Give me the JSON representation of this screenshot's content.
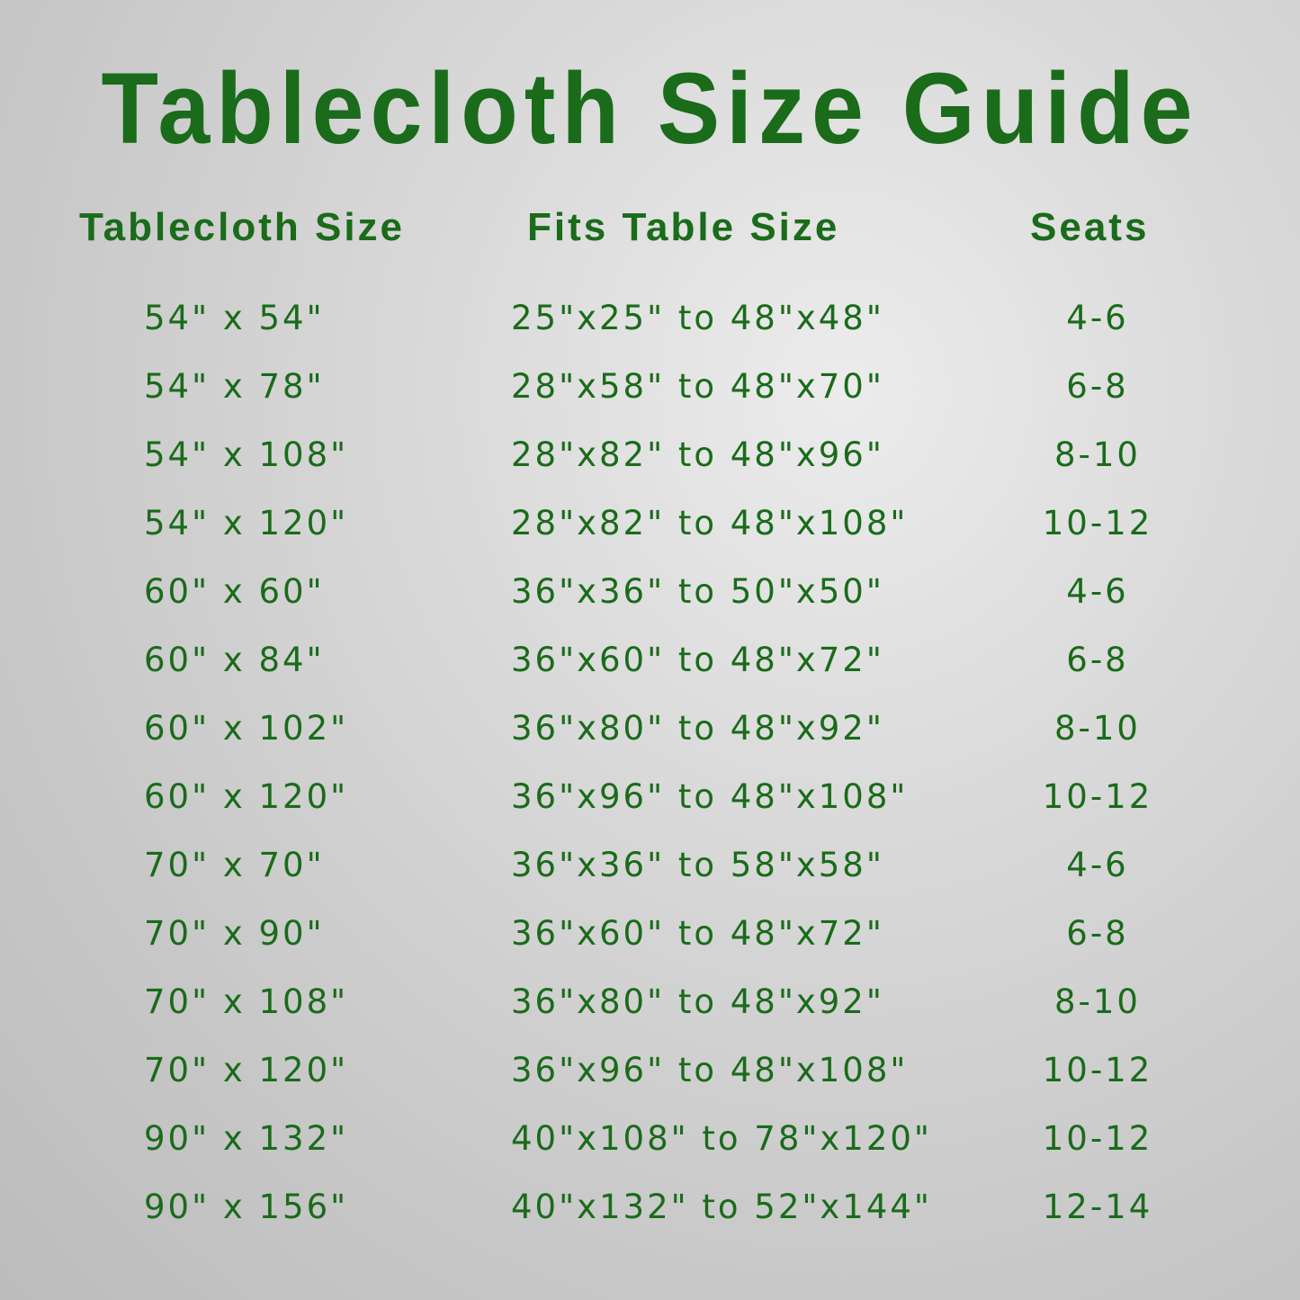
{
  "title": "Tablecloth Size Guide",
  "headers": {
    "size": "Tablecloth Size",
    "fits": "Fits Table Size",
    "seats": "Seats"
  },
  "rows": [
    {
      "size": "54\" x 54\"",
      "fits": "25\"x25\" to 48\"x48\"",
      "seats": "4-6"
    },
    {
      "size": "54\" x 78\"",
      "fits": "28\"x58\" to 48\"x70\"",
      "seats": "6-8"
    },
    {
      "size": "54\" x 108\"",
      "fits": "28\"x82\" to 48\"x96\"",
      "seats": "8-10"
    },
    {
      "size": "54\" x 120\"",
      "fits": "28\"x82\" to 48\"x108\"",
      "seats": "10-12"
    },
    {
      "size": "60\" x 60\"",
      "fits": "36\"x36\" to 50\"x50\"",
      "seats": "4-6"
    },
    {
      "size": "60\" x 84\"",
      "fits": "36\"x60\" to 48\"x72\"",
      "seats": "6-8"
    },
    {
      "size": "60\" x 102\"",
      "fits": "36\"x80\" to 48\"x92\"",
      "seats": "8-10"
    },
    {
      "size": "60\" x 120\"",
      "fits": "36\"x96\" to 48\"x108\"",
      "seats": "10-12"
    },
    {
      "size": "70\" x 70\"",
      "fits": "36\"x36\" to 58\"x58\"",
      "seats": "4-6"
    },
    {
      "size": "70\" x 90\"",
      "fits": "36\"x60\" to 48\"x72\"",
      "seats": "6-8"
    },
    {
      "size": "70\" x 108\"",
      "fits": "36\"x80\" to 48\"x92\"",
      "seats": "8-10"
    },
    {
      "size": "70\" x 120\"",
      "fits": "36\"x96\" to 48\"x108\"",
      "seats": "10-12"
    },
    {
      "size": "90\" x 132\"",
      "fits": "40\"x108\" to 78\"x120\"",
      "seats": "10-12"
    },
    {
      "size": "90\" x 156\"",
      "fits": "40\"x132\" to 52\"x144\"",
      "seats": "12-14"
    }
  ],
  "colors": {
    "text": "#1a6b1a",
    "background": "#d6d6d6"
  }
}
